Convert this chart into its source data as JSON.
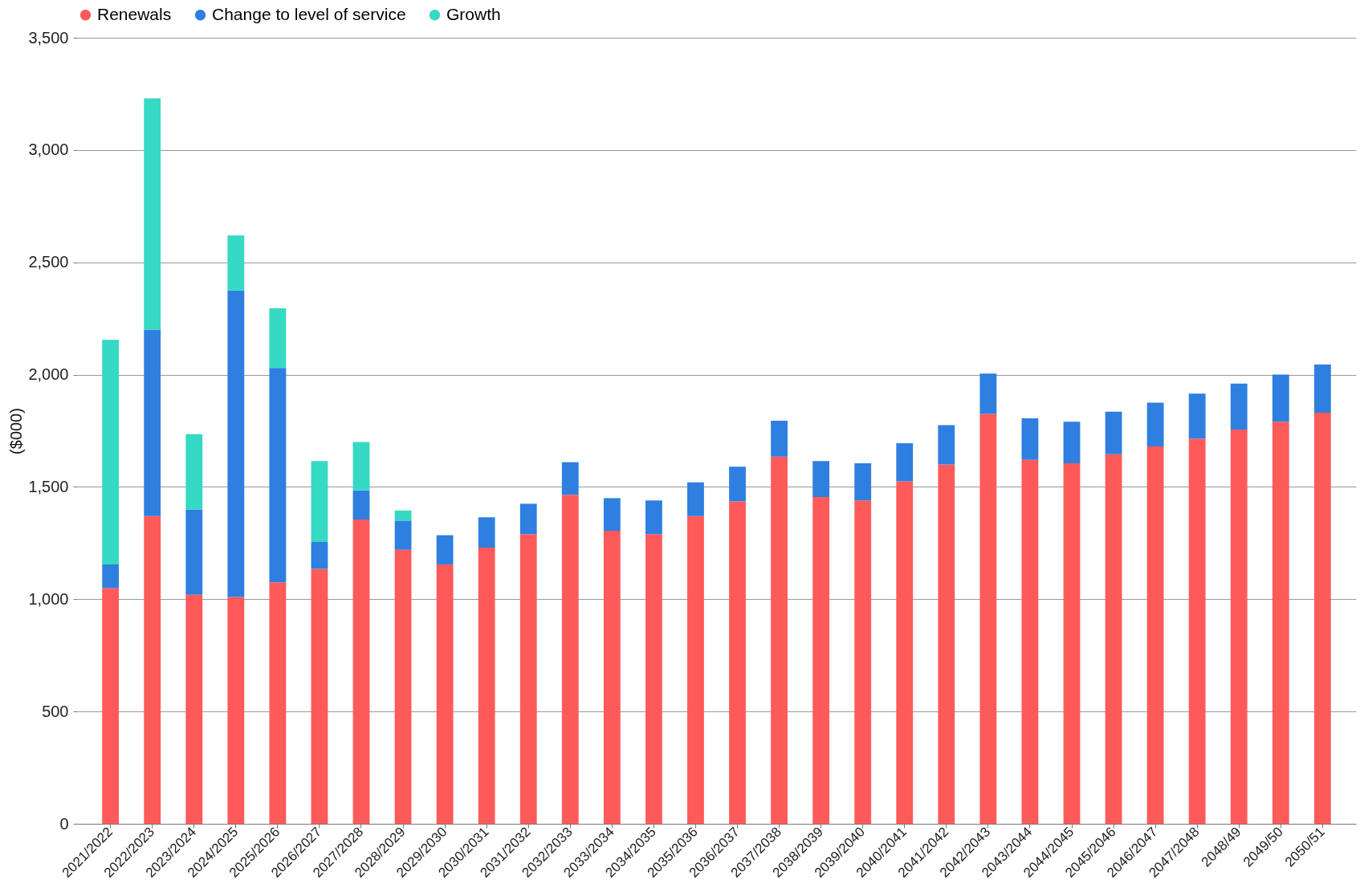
{
  "chart_data": {
    "type": "bar",
    "stacked": true,
    "ylabel": "($000)",
    "legend": "top",
    "grid": "y",
    "categories": [
      "2021/2022",
      "2022/2023",
      "2023/2024",
      "2024/2025",
      "2025/2026",
      "2026/2027",
      "2027/2028",
      "2028/2029",
      "2029/2030",
      "2030/2031",
      "2031/2032",
      "2032/2033",
      "2033/2034",
      "2034/2035",
      "2035/2036",
      "2036/2037",
      "2037/2038",
      "2038/2039",
      "2039/2040",
      "2040/2041",
      "2041/2042",
      "2042/2043",
      "2043/2044",
      "2044/2045",
      "2045/2046",
      "2046/2047",
      "2047/2048",
      "2048/49",
      "2049/50",
      "2050/51"
    ],
    "series": [
      {
        "name": "Renewals",
        "color": "#ff5a5a",
        "values": [
          1050,
          1370,
          1020,
          1010,
          1075,
          1135,
          1355,
          1220,
          1155,
          1230,
          1290,
          1465,
          1305,
          1290,
          1370,
          1435,
          1635,
          1455,
          1440,
          1525,
          1600,
          1825,
          1620,
          1605,
          1645,
          1680,
          1715,
          1755,
          1790,
          1830
        ]
      },
      {
        "name": "Change to level of service",
        "color": "#2e7fe0",
        "values": [
          105,
          830,
          380,
          1365,
          955,
          120,
          130,
          130,
          130,
          135,
          135,
          145,
          145,
          150,
          150,
          155,
          160,
          160,
          165,
          170,
          175,
          180,
          185,
          185,
          190,
          195,
          200,
          205,
          210,
          215
        ]
      },
      {
        "name": "Growth",
        "color": "#36d9c4",
        "values": [
          1000,
          1030,
          335,
          245,
          265,
          360,
          215,
          45,
          null,
          null,
          null,
          null,
          null,
          null,
          null,
          null,
          null,
          null,
          null,
          null,
          null,
          null,
          null,
          null,
          null,
          null,
          null,
          null,
          null,
          null
        ]
      }
    ],
    "ylim": [
      0,
      3500
    ],
    "yticks": [
      0,
      500,
      {
        "value": 1000,
        "label": "1,000"
      },
      {
        "value": 1500,
        "label": "1,500"
      },
      {
        "value": 2000,
        "label": "2,000"
      },
      {
        "value": 2500,
        "label": "2,500"
      },
      {
        "value": 3000,
        "label": "3,000"
      },
      {
        "value": 3500,
        "label": "3,500"
      }
    ]
  }
}
